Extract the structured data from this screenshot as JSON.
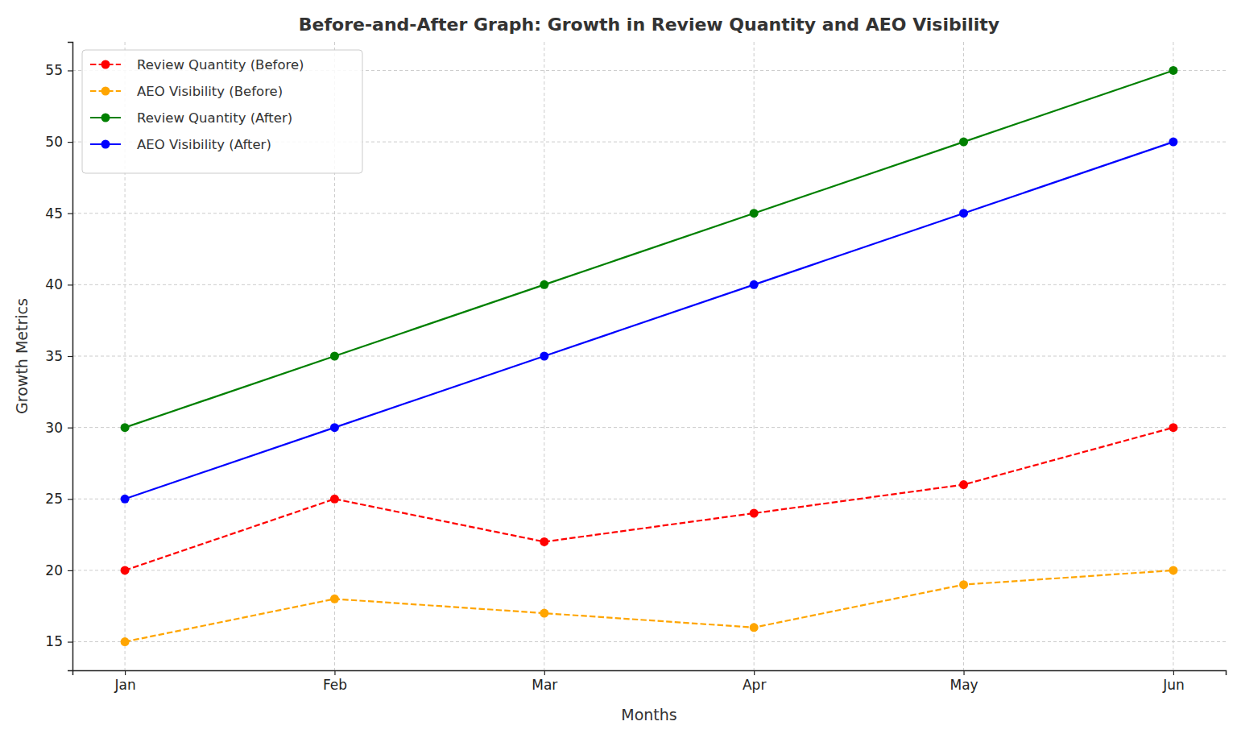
{
  "chart_data": {
    "type": "line",
    "title": "Before-and-After Graph: Growth in Review Quantity and AEO Visibility",
    "x_label": "Months",
    "y_label": "Growth Metrics",
    "categories": [
      "Jan",
      "Feb",
      "Mar",
      "Apr",
      "May",
      "Jun"
    ],
    "series": [
      {
        "name": "Review Quantity (Before)",
        "color": "#ff0000",
        "marker": "circle",
        "line_style": "dashed",
        "values": [
          20,
          25,
          22,
          24,
          26,
          30
        ]
      },
      {
        "name": "AEO Visibility (Before)",
        "color": "#ffa500",
        "marker": "circle",
        "line_style": "dashed",
        "values": [
          15,
          18,
          17,
          16,
          19,
          20
        ]
      },
      {
        "name": "Review Quantity (After)",
        "color": "#008000",
        "marker": "circle",
        "line_style": "solid",
        "values": [
          30,
          35,
          40,
          45,
          50,
          55
        ]
      },
      {
        "name": "AEO Visibility (After)",
        "color": "#0000ff",
        "marker": "circle",
        "line_style": "solid",
        "values": [
          25,
          30,
          35,
          40,
          45,
          50
        ]
      }
    ],
    "ylim": [
      13,
      57
    ],
    "yticks": [
      15,
      20,
      25,
      30,
      35,
      40,
      45,
      50,
      55
    ],
    "grid": true,
    "legend": "upper left"
  }
}
